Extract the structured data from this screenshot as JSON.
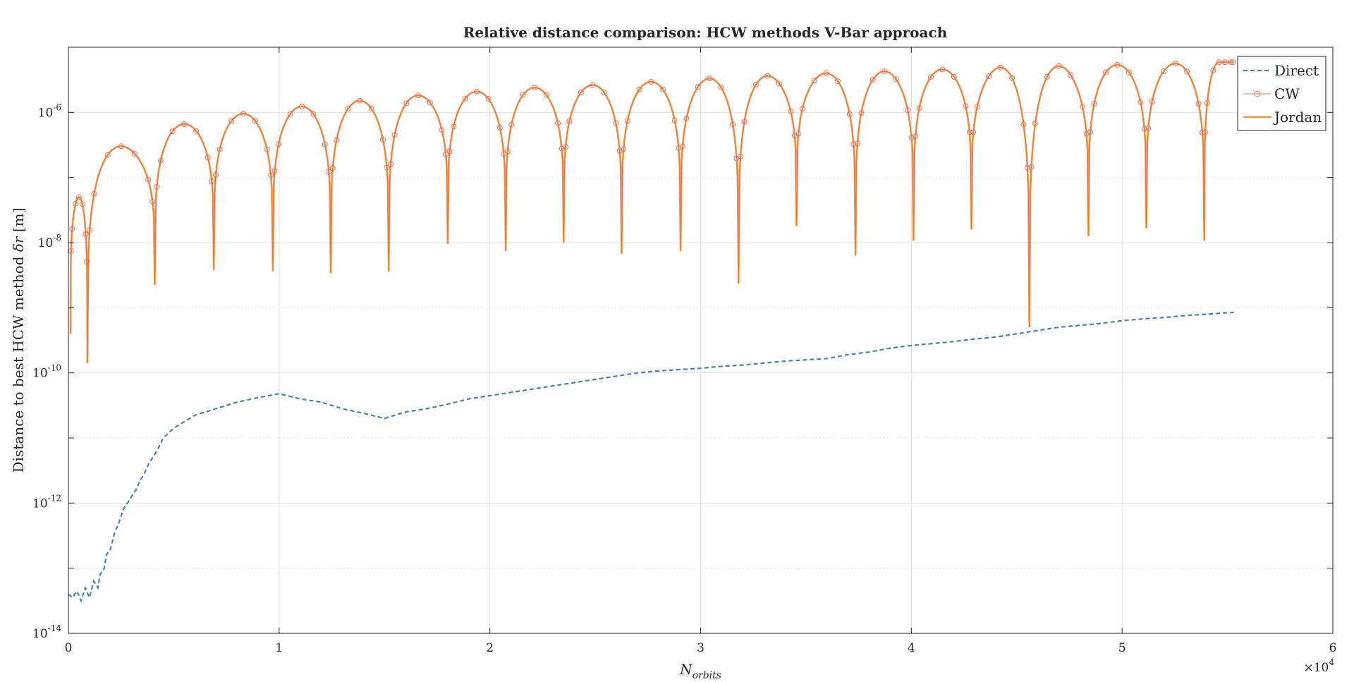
{
  "chart_data": {
    "type": "line",
    "title": "Relative distance comparison: HCW methods V-Bar approach",
    "xlabel": {
      "base": "N",
      "sub": "orbits"
    },
    "ylabel": {
      "prefix": "Distance to best HCW method ",
      "symbol": "δr",
      "suffix": " [m]"
    },
    "x_multiplier": {
      "text": "×10",
      "exp": "4"
    },
    "xlim": [
      0,
      6
    ],
    "ylim_log10": [
      -14,
      -5
    ],
    "y_scale": "log",
    "x_ticks": [
      0,
      1,
      2,
      3,
      4,
      5,
      6
    ],
    "y_tick_exponents": [
      -14,
      -12,
      -10,
      -8,
      -6
    ],
    "y_tick_base": "10",
    "grid": true,
    "legend_position": "top-right",
    "colors": {
      "direct": "#4a7fb0",
      "cw": "#e8705a",
      "jordan": "#f5963a",
      "axis": "#262626",
      "grid": "#e1e1e1"
    },
    "series": [
      {
        "name": "Direct",
        "style": "dashed",
        "points": [
          [
            0.0,
            -13.4
          ],
          [
            0.02,
            -13.45
          ],
          [
            0.04,
            -13.35
          ],
          [
            0.06,
            -13.5
          ],
          [
            0.08,
            -13.3
          ],
          [
            0.1,
            -13.45
          ],
          [
            0.12,
            -13.2
          ],
          [
            0.14,
            -13.3
          ],
          [
            0.15,
            -13.1
          ],
          [
            0.17,
            -13.0
          ],
          [
            0.18,
            -12.8
          ],
          [
            0.2,
            -12.7
          ],
          [
            0.22,
            -12.45
          ],
          [
            0.24,
            -12.3
          ],
          [
            0.26,
            -12.1
          ],
          [
            0.28,
            -12.0
          ],
          [
            0.3,
            -11.9
          ],
          [
            0.32,
            -11.8
          ],
          [
            0.34,
            -11.65
          ],
          [
            0.36,
            -11.55
          ],
          [
            0.38,
            -11.4
          ],
          [
            0.42,
            -11.2
          ],
          [
            0.45,
            -11.0
          ],
          [
            0.5,
            -10.85
          ],
          [
            0.55,
            -10.75
          ],
          [
            0.6,
            -10.65
          ],
          [
            0.7,
            -10.55
          ],
          [
            0.8,
            -10.45
          ],
          [
            0.9,
            -10.38
          ],
          [
            1.0,
            -10.32
          ],
          [
            1.1,
            -10.4
          ],
          [
            1.2,
            -10.45
          ],
          [
            1.3,
            -10.55
          ],
          [
            1.4,
            -10.62
          ],
          [
            1.5,
            -10.7
          ],
          [
            1.6,
            -10.6
          ],
          [
            1.7,
            -10.55
          ],
          [
            1.8,
            -10.48
          ],
          [
            1.9,
            -10.4
          ],
          [
            2.0,
            -10.35
          ],
          [
            2.1,
            -10.3
          ],
          [
            2.2,
            -10.25
          ],
          [
            2.3,
            -10.2
          ],
          [
            2.4,
            -10.15
          ],
          [
            2.5,
            -10.1
          ],
          [
            2.6,
            -10.05
          ],
          [
            2.7,
            -10.0
          ],
          [
            2.8,
            -9.97
          ],
          [
            2.9,
            -9.95
          ],
          [
            3.0,
            -9.93
          ],
          [
            3.1,
            -9.9
          ],
          [
            3.2,
            -9.88
          ],
          [
            3.3,
            -9.85
          ],
          [
            3.4,
            -9.82
          ],
          [
            3.5,
            -9.8
          ],
          [
            3.6,
            -9.78
          ],
          [
            3.7,
            -9.72
          ],
          [
            3.8,
            -9.68
          ],
          [
            3.9,
            -9.62
          ],
          [
            4.0,
            -9.58
          ],
          [
            4.1,
            -9.55
          ],
          [
            4.2,
            -9.52
          ],
          [
            4.3,
            -9.48
          ],
          [
            4.4,
            -9.45
          ],
          [
            4.5,
            -9.4
          ],
          [
            4.6,
            -9.35
          ],
          [
            4.7,
            -9.3
          ],
          [
            4.8,
            -9.27
          ],
          [
            4.9,
            -9.24
          ],
          [
            5.0,
            -9.2
          ],
          [
            5.1,
            -9.17
          ],
          [
            5.2,
            -9.15
          ],
          [
            5.3,
            -9.12
          ],
          [
            5.4,
            -9.1
          ],
          [
            5.53,
            -9.07
          ]
        ]
      },
      {
        "name": "CW",
        "style": "solid-markers",
        "arches": [
          {
            "start": 0.01,
            "end": 0.09,
            "peak": -7.3
          },
          {
            "start": 0.09,
            "end": 0.41,
            "peak": -6.52
          },
          {
            "start": 0.41,
            "end": 0.69,
            "peak": -6.18
          },
          {
            "start": 0.69,
            "end": 0.97,
            "peak": -6.02
          },
          {
            "start": 0.97,
            "end": 1.245,
            "peak": -5.91
          },
          {
            "start": 1.245,
            "end": 1.52,
            "peak": -5.82
          },
          {
            "start": 1.52,
            "end": 1.8,
            "peak": -5.74
          },
          {
            "start": 1.8,
            "end": 2.075,
            "peak": -5.68
          },
          {
            "start": 2.075,
            "end": 2.35,
            "peak": -5.62
          },
          {
            "start": 2.35,
            "end": 2.625,
            "peak": -5.58
          },
          {
            "start": 2.625,
            "end": 2.905,
            "peak": -5.53
          },
          {
            "start": 2.905,
            "end": 3.18,
            "peak": -5.48
          },
          {
            "start": 3.18,
            "end": 3.455,
            "peak": -5.44
          },
          {
            "start": 3.455,
            "end": 3.735,
            "peak": -5.4
          },
          {
            "start": 3.735,
            "end": 4.01,
            "peak": -5.37
          },
          {
            "start": 4.01,
            "end": 4.285,
            "peak": -5.34
          },
          {
            "start": 4.285,
            "end": 4.56,
            "peak": -5.31
          },
          {
            "start": 4.56,
            "end": 4.84,
            "peak": -5.29
          },
          {
            "start": 4.84,
            "end": 5.115,
            "peak": -5.27
          },
          {
            "start": 5.115,
            "end": 5.39,
            "peak": -5.25
          },
          {
            "start": 5.39,
            "end": 5.53,
            "peak": -5.23
          }
        ],
        "dips": [
          -9.4,
          -9.85,
          -8.65,
          -8.42,
          -8.44,
          -8.47,
          -8.45,
          -8.02,
          -8.13,
          -8.0,
          -8.17,
          -8.13,
          -8.63,
          -7.75,
          -8.2,
          -7.97,
          -7.8,
          -9.3,
          -7.9,
          -7.78,
          -7.97,
          -8.0
        ]
      },
      {
        "name": "Jordan",
        "style": "solid"
      }
    ]
  }
}
